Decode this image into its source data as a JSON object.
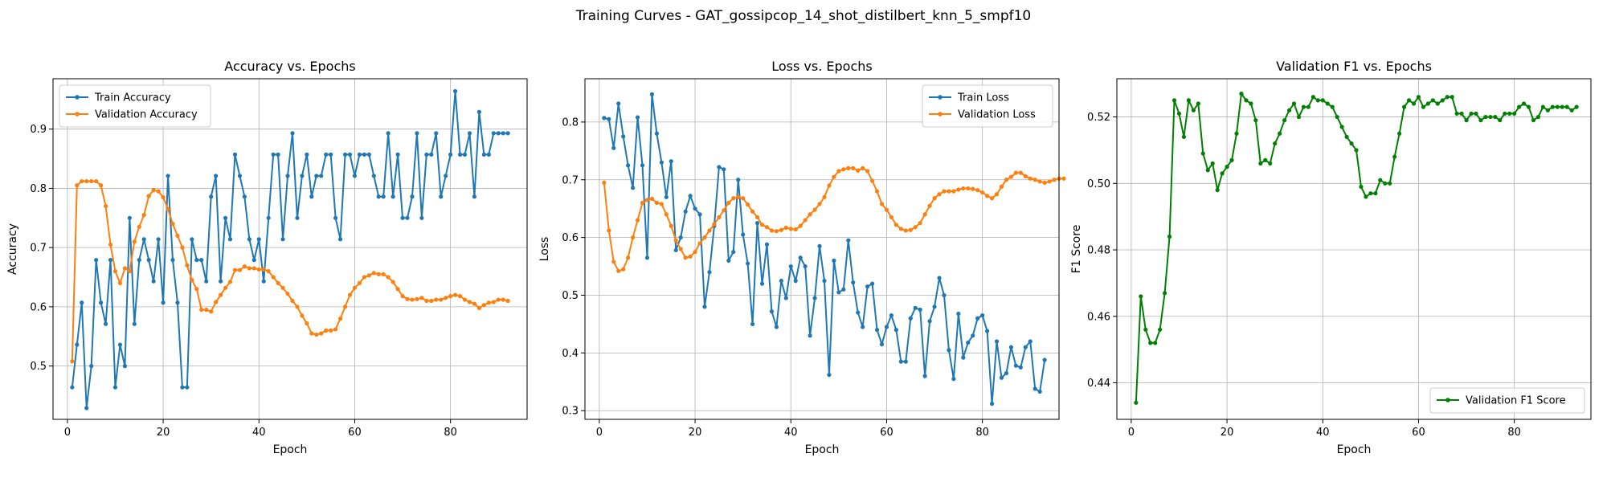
{
  "figure": {
    "suptitle": "Training Curves - GAT_gossipcop_14_shot_distilbert_knn_5_smpf10"
  },
  "colors": {
    "train": "#1f77b4",
    "validation": "#ff7f0e",
    "f1": "#008000",
    "grid": "#b0b0b0"
  },
  "chart_data": [
    {
      "type": "line",
      "title": "Accuracy vs. Epochs",
      "xlabel": "Epoch",
      "ylabel": "Accuracy",
      "xlim": [
        -3,
        96
      ],
      "ylim": [
        0.41,
        0.985
      ],
      "xticks": [
        0,
        20,
        40,
        60,
        80
      ],
      "yticks": [
        0.5,
        0.6,
        0.7,
        0.8,
        0.9
      ],
      "ytick_labels": [
        "0.5",
        "0.6",
        "0.7",
        "0.8",
        "0.9"
      ],
      "grid": true,
      "legend": "upper-left",
      "series": [
        {
          "name": "Train Accuracy",
          "color": "#1f77b4",
          "y": [
            0.464,
            0.536,
            0.607,
            0.429,
            0.5,
            0.679,
            0.607,
            0.571,
            0.679,
            0.464,
            0.536,
            0.5,
            0.75,
            0.571,
            0.679,
            0.714,
            0.679,
            0.643,
            0.714,
            0.607,
            0.821,
            0.679,
            0.607,
            0.464,
            0.464,
            0.714,
            0.679,
            0.679,
            0.643,
            0.786,
            0.821,
            0.643,
            0.75,
            0.714,
            0.857,
            0.821,
            0.786,
            0.714,
            0.679,
            0.714,
            0.643,
            0.75,
            0.857,
            0.857,
            0.714,
            0.821,
            0.893,
            0.75,
            0.821,
            0.857,
            0.786,
            0.821,
            0.821,
            0.857,
            0.857,
            0.75,
            0.714,
            0.857,
            0.857,
            0.821,
            0.857,
            0.857,
            0.857,
            0.821,
            0.786,
            0.786,
            0.893,
            0.786,
            0.857,
            0.75,
            0.75,
            0.786,
            0.893,
            0.75,
            0.857,
            0.857,
            0.893,
            0.786,
            0.821,
            0.857,
            0.964,
            0.857,
            0.857,
            0.893,
            0.786,
            0.929,
            0.857,
            0.857,
            0.893,
            0.893,
            0.893,
            0.893
          ]
        },
        {
          "name": "Validation Accuracy",
          "color": "#ff7f0e",
          "y": [
            0.508,
            0.805,
            0.812,
            0.812,
            0.812,
            0.812,
            0.805,
            0.77,
            0.705,
            0.66,
            0.64,
            0.665,
            0.66,
            0.71,
            0.735,
            0.755,
            0.787,
            0.797,
            0.795,
            0.785,
            0.765,
            0.74,
            0.72,
            0.7,
            0.67,
            0.645,
            0.63,
            0.595,
            0.595,
            0.592,
            0.608,
            0.62,
            0.632,
            0.642,
            0.662,
            0.662,
            0.668,
            0.665,
            0.665,
            0.663,
            0.663,
            0.66,
            0.65,
            0.64,
            0.632,
            0.622,
            0.61,
            0.6,
            0.585,
            0.572,
            0.555,
            0.553,
            0.555,
            0.56,
            0.56,
            0.562,
            0.58,
            0.6,
            0.62,
            0.632,
            0.64,
            0.65,
            0.653,
            0.657,
            0.655,
            0.655,
            0.65,
            0.642,
            0.63,
            0.618,
            0.613,
            0.612,
            0.613,
            0.615,
            0.61,
            0.61,
            0.612,
            0.612,
            0.615,
            0.618,
            0.62,
            0.618,
            0.612,
            0.608,
            0.605,
            0.598,
            0.603,
            0.607,
            0.608,
            0.612,
            0.612,
            0.61
          ]
        }
      ]
    },
    {
      "type": "line",
      "title": "Loss vs. Epochs",
      "xlabel": "Epoch",
      "ylabel": "Loss",
      "xlim": [
        -3,
        96
      ],
      "ylim": [
        0.285,
        0.875
      ],
      "xticks": [
        0,
        20,
        40,
        60,
        80
      ],
      "yticks": [
        0.3,
        0.4,
        0.5,
        0.6,
        0.7,
        0.8
      ],
      "ytick_labels": [
        "0.3",
        "0.4",
        "0.5",
        "0.6",
        "0.7",
        "0.8"
      ],
      "grid": true,
      "legend": "upper-right",
      "series": [
        {
          "name": "Train Loss",
          "color": "#1f77b4",
          "y": [
            0.807,
            0.805,
            0.755,
            0.832,
            0.775,
            0.725,
            0.686,
            0.808,
            0.725,
            0.565,
            0.848,
            0.78,
            0.73,
            0.67,
            0.732,
            0.578,
            0.6,
            0.645,
            0.672,
            0.65,
            0.64,
            0.48,
            0.54,
            0.62,
            0.722,
            0.718,
            0.56,
            0.575,
            0.7,
            0.605,
            0.555,
            0.45,
            0.625,
            0.52,
            0.588,
            0.472,
            0.445,
            0.525,
            0.495,
            0.55,
            0.525,
            0.565,
            0.55,
            0.43,
            0.495,
            0.585,
            0.525,
            0.362,
            0.56,
            0.505,
            0.51,
            0.595,
            0.522,
            0.47,
            0.445,
            0.515,
            0.52,
            0.44,
            0.415,
            0.445,
            0.465,
            0.44,
            0.385,
            0.385,
            0.46,
            0.478,
            0.475,
            0.36,
            0.455,
            0.48,
            0.53,
            0.5,
            0.405,
            0.355,
            0.468,
            0.392,
            0.418,
            0.43,
            0.46,
            0.465,
            0.438,
            0.312,
            0.42,
            0.357,
            0.365,
            0.41,
            0.378,
            0.375,
            0.41,
            0.42,
            0.338,
            0.333,
            0.388
          ]
        },
        {
          "name": "Validation Loss",
          "color": "#ff7f0e",
          "y": [
            0.695,
            0.612,
            0.558,
            0.542,
            0.545,
            0.565,
            0.6,
            0.63,
            0.66,
            0.665,
            0.667,
            0.66,
            0.658,
            0.64,
            0.62,
            0.595,
            0.58,
            0.565,
            0.567,
            0.575,
            0.59,
            0.6,
            0.612,
            0.623,
            0.635,
            0.647,
            0.66,
            0.668,
            0.67,
            0.668,
            0.657,
            0.645,
            0.635,
            0.622,
            0.618,
            0.612,
            0.611,
            0.613,
            0.617,
            0.615,
            0.614,
            0.62,
            0.63,
            0.64,
            0.648,
            0.658,
            0.67,
            0.69,
            0.705,
            0.715,
            0.718,
            0.72,
            0.72,
            0.716,
            0.72,
            0.715,
            0.698,
            0.68,
            0.658,
            0.648,
            0.635,
            0.622,
            0.615,
            0.612,
            0.613,
            0.618,
            0.625,
            0.64,
            0.655,
            0.668,
            0.675,
            0.68,
            0.68,
            0.68,
            0.683,
            0.685,
            0.685,
            0.684,
            0.682,
            0.678,
            0.672,
            0.668,
            0.675,
            0.688,
            0.7,
            0.705,
            0.712,
            0.712,
            0.706,
            0.702,
            0.7,
            0.697,
            0.695,
            0.697,
            0.7,
            0.702,
            0.702
          ]
        }
      ]
    },
    {
      "type": "line",
      "title": "Validation F1 vs. Epochs",
      "xlabel": "Epoch",
      "ylabel": "F1 Score",
      "xlim": [
        -3,
        96
      ],
      "ylim": [
        0.429,
        0.5315
      ],
      "xticks": [
        0,
        20,
        40,
        60,
        80
      ],
      "yticks": [
        0.44,
        0.46,
        0.48,
        0.5,
        0.52
      ],
      "ytick_labels": [
        "0.44",
        "0.46",
        "0.48",
        "0.50",
        "0.52"
      ],
      "grid": true,
      "legend": "lower-right",
      "series": [
        {
          "name": "Validation F1 Score",
          "color": "#008000",
          "y": [
            0.434,
            0.466,
            0.456,
            0.452,
            0.452,
            0.456,
            0.467,
            0.484,
            0.525,
            0.521,
            0.514,
            0.525,
            0.522,
            0.524,
            0.509,
            0.504,
            0.506,
            0.498,
            0.503,
            0.505,
            0.507,
            0.515,
            0.527,
            0.525,
            0.524,
            0.519,
            0.506,
            0.507,
            0.506,
            0.512,
            0.515,
            0.519,
            0.522,
            0.524,
            0.52,
            0.523,
            0.523,
            0.526,
            0.525,
            0.525,
            0.524,
            0.523,
            0.52,
            0.517,
            0.514,
            0.512,
            0.51,
            0.499,
            0.496,
            0.497,
            0.497,
            0.501,
            0.5,
            0.5,
            0.508,
            0.515,
            0.523,
            0.525,
            0.524,
            0.526,
            0.523,
            0.524,
            0.525,
            0.524,
            0.525,
            0.526,
            0.526,
            0.521,
            0.521,
            0.519,
            0.521,
            0.521,
            0.519,
            0.52,
            0.52,
            0.52,
            0.519,
            0.521,
            0.521,
            0.521,
            0.523,
            0.524,
            0.523,
            0.519,
            0.52,
            0.523,
            0.522,
            0.523,
            0.523,
            0.523,
            0.523,
            0.522,
            0.523
          ]
        }
      ]
    }
  ]
}
